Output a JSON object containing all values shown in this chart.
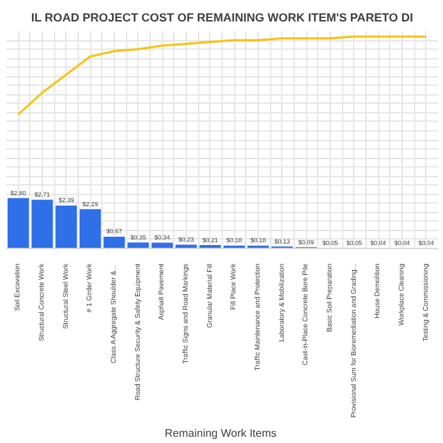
{
  "chart_data": {
    "type": "bar",
    "title": "IL ROAD PROJECT COST OF REMAINING WORK ITEM'S PARETO DI",
    "xlabel": "Remaining  Work Items",
    "categories": [
      "Soil Excavation",
      "Structural Concrete Work",
      "Structural Steel Work",
      "# 1 Girder Work",
      "Class A Aggregate Shoulder &...",
      "Road Structure Security & Safety Equipment",
      "Asphalt Pavement",
      "Traffic Signs and Road Markings",
      "Granular Material Fill",
      "Fill Place Work",
      "Traffic Maintenance and Protection",
      "Laboratory & Mobilization",
      "Cast-in-Place Concrete Bore Pile",
      "Basic Soil Preparation",
      "Provisional Sum for Bioremediation and Grading...",
      "House Demolition",
      "Workplace Cleaning",
      "Testing & Commissioning"
    ],
    "series": [
      {
        "color": "#2f6fe8",
        "values": [
          2.8,
          2.71,
          2.39,
          2.19,
          0.67,
          0.35,
          0.34,
          0.23,
          0.21,
          0.18,
          0.18,
          0.13,
          0.09,
          0.05,
          0.05,
          0.04,
          0.04,
          0.04
        ],
        "value_labels": [
          "$2.80",
          "$2.71",
          "$2.39",
          "$2.19",
          "$0.67",
          "$0.35",
          "$0.34",
          "$0.23",
          "$0.21",
          "$0.18",
          "$0.18",
          "$0.13",
          "$0.09",
          "$0.05",
          "$0.05",
          "$0.04",
          "$0.04",
          "$0.04"
        ]
      },
      {
        "type": "line",
        "color": "#f5c518",
        "values": [
          7.4,
          8.6,
          9.6,
          10.6,
          10.9,
          11.0,
          11.2,
          11.3,
          11.4,
          11.5,
          11.5,
          11.6,
          11.6,
          11.6,
          11.7,
          11.7,
          11.7,
          11.7
        ]
      }
    ],
    "ylim": [
      0,
      12
    ],
    "grid": true,
    "tick_labels": "x",
    "marker": "none",
    "line_style": "solid"
  }
}
